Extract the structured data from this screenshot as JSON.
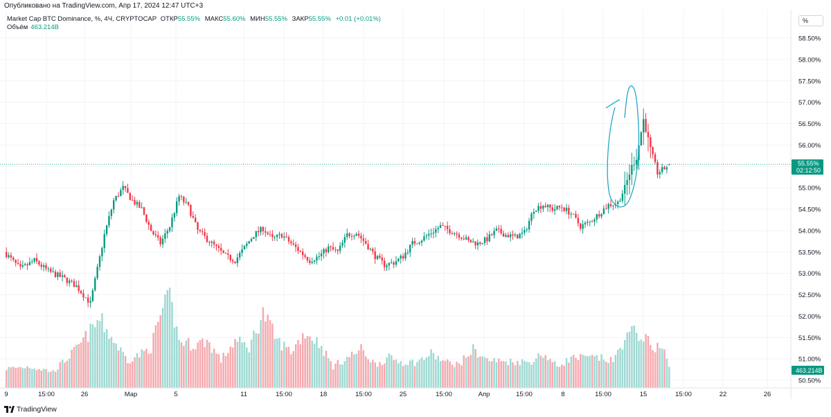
{
  "header": {
    "published": "Опубликовано на TradingView.com, Апр 17, 2024 12:47 UTC+3",
    "symbol": "Market Cap BTC Dominance, %, 4Ч, CRYPTOCAP",
    "open_label": "ОТКР",
    "open_value": "55.55%",
    "high_label": "МАКС",
    "high_value": "55.60%",
    "low_label": "МИН",
    "low_value": "55.55%",
    "close_label": "ЗАКР",
    "close_value": "55.55%",
    "change": "+0.01 (+0.01%)",
    "volume_label": "Объём",
    "volume_value": "463.214B",
    "scale_button": "%"
  },
  "footer": {
    "brand": "TradingView"
  },
  "colors": {
    "up": "#089981",
    "down": "#f23645",
    "vol_up": "#9fd9d3",
    "vol_down": "#f6a9ae",
    "annotation": "#22a6c8",
    "grid": "#f0f3fa",
    "price_line": "#089981"
  },
  "chart_data": {
    "type": "candlestick",
    "title": "Market Cap BTC Dominance, %, 4Ч, CRYPTOCAP",
    "y_unit": "%",
    "ylim": [
      50.5,
      58.5
    ],
    "y_ticks": [
      "58.50%",
      "58.00%",
      "57.50%",
      "57.00%",
      "56.50%",
      "56.00%",
      "55.50%",
      "55.00%",
      "54.50%",
      "54.00%",
      "53.50%",
      "53.00%",
      "52.50%",
      "52.00%",
      "51.50%",
      "51.00%",
      "50.50%"
    ],
    "x_ticks": [
      "9",
      "15:00",
      "26",
      "Мар",
      "5",
      "11",
      "15:00",
      "18",
      "15:00",
      "25",
      "15:00",
      "Апр",
      "15:00",
      "8",
      "15:00",
      "15",
      "15:00",
      "22",
      "26"
    ],
    "last_price_label": "55.55%",
    "countdown_label": "02:12:50",
    "last_volume_label": "463.214B",
    "closes_anchor": [
      [
        0,
        53.45
      ],
      [
        6,
        53.1
      ],
      [
        12,
        53.3
      ],
      [
        18,
        53.05
      ],
      [
        24,
        52.9
      ],
      [
        30,
        52.7
      ],
      [
        36,
        52.3
      ],
      [
        42,
        53.9
      ],
      [
        46,
        54.7
      ],
      [
        50,
        55.0
      ],
      [
        54,
        54.7
      ],
      [
        58,
        54.5
      ],
      [
        62,
        54.0
      ],
      [
        66,
        53.7
      ],
      [
        70,
        54.1
      ],
      [
        74,
        54.8
      ],
      [
        78,
        54.55
      ],
      [
        82,
        54.0
      ],
      [
        86,
        53.8
      ],
      [
        90,
        53.6
      ],
      [
        94,
        53.4
      ],
      [
        98,
        53.3
      ],
      [
        102,
        53.6
      ],
      [
        106,
        53.9
      ],
      [
        110,
        54.05
      ],
      [
        114,
        53.8
      ],
      [
        118,
        53.9
      ],
      [
        122,
        53.7
      ],
      [
        126,
        53.5
      ],
      [
        130,
        53.3
      ],
      [
        134,
        53.4
      ],
      [
        138,
        53.6
      ],
      [
        142,
        53.5
      ],
      [
        146,
        53.9
      ],
      [
        150,
        53.95
      ],
      [
        154,
        53.7
      ],
      [
        158,
        53.4
      ],
      [
        162,
        53.2
      ],
      [
        166,
        53.25
      ],
      [
        170,
        53.4
      ],
      [
        174,
        53.7
      ],
      [
        178,
        53.8
      ],
      [
        182,
        53.95
      ],
      [
        186,
        54.1
      ],
      [
        190,
        54.0
      ],
      [
        194,
        53.9
      ],
      [
        198,
        53.75
      ],
      [
        202,
        53.7
      ],
      [
        206,
        53.8
      ],
      [
        210,
        54.0
      ],
      [
        214,
        53.9
      ],
      [
        218,
        53.85
      ],
      [
        222,
        53.95
      ],
      [
        226,
        54.5
      ],
      [
        230,
        54.6
      ],
      [
        234,
        54.5
      ],
      [
        238,
        54.55
      ],
      [
        242,
        54.4
      ],
      [
        246,
        54.1
      ],
      [
        250,
        54.2
      ],
      [
        254,
        54.4
      ],
      [
        258,
        54.6
      ],
      [
        262,
        54.65
      ],
      [
        265,
        55.0
      ],
      [
        268,
        55.5
      ],
      [
        270,
        55.7
      ],
      [
        273,
        56.6
      ],
      [
        276,
        55.9
      ],
      [
        279,
        55.35
      ],
      [
        282,
        55.45
      ],
      [
        284,
        55.55
      ]
    ],
    "volume_range": [
      0,
      2200
    ],
    "volumes_anchor": [
      [
        0,
        450
      ],
      [
        10,
        500
      ],
      [
        20,
        380
      ],
      [
        30,
        900
      ],
      [
        40,
        1600
      ],
      [
        46,
        1100
      ],
      [
        52,
        650
      ],
      [
        58,
        800
      ],
      [
        62,
        950
      ],
      [
        66,
        1700
      ],
      [
        70,
        2100
      ],
      [
        74,
        1100
      ],
      [
        80,
        1000
      ],
      [
        86,
        1100
      ],
      [
        92,
        650
      ],
      [
        98,
        1100
      ],
      [
        104,
        950
      ],
      [
        110,
        1750
      ],
      [
        116,
        1100
      ],
      [
        122,
        850
      ],
      [
        128,
        1300
      ],
      [
        134,
        1050
      ],
      [
        140,
        500
      ],
      [
        146,
        700
      ],
      [
        152,
        900
      ],
      [
        158,
        550
      ],
      [
        164,
        700
      ],
      [
        170,
        600
      ],
      [
        176,
        600
      ],
      [
        182,
        800
      ],
      [
        188,
        600
      ],
      [
        194,
        550
      ],
      [
        200,
        900
      ],
      [
        206,
        650
      ],
      [
        212,
        620
      ],
      [
        218,
        620
      ],
      [
        224,
        600
      ],
      [
        230,
        800
      ],
      [
        236,
        500
      ],
      [
        242,
        700
      ],
      [
        248,
        700
      ],
      [
        254,
        700
      ],
      [
        260,
        620
      ],
      [
        264,
        1050
      ],
      [
        268,
        1300
      ],
      [
        272,
        1250
      ],
      [
        276,
        1000
      ],
      [
        282,
        900
      ],
      [
        284,
        450
      ]
    ]
  }
}
